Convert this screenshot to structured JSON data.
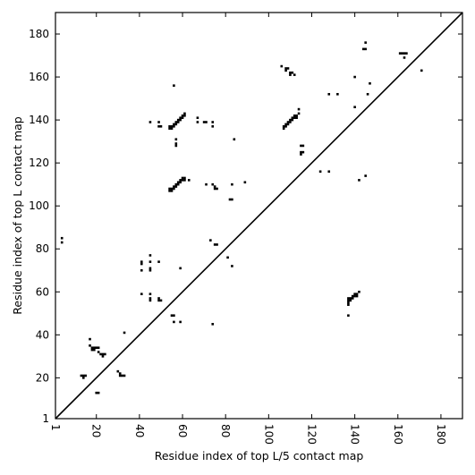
{
  "chart_data": {
    "type": "scatter",
    "title": "",
    "xlabel": "Residue index of top L/5 contact map",
    "ylabel": "Residue index of top L contact map",
    "xlim": [
      1,
      190
    ],
    "ylim": [
      1,
      190
    ],
    "xticks": [
      1,
      20,
      40,
      60,
      80,
      100,
      120,
      140,
      160,
      180
    ],
    "yticks": [
      1,
      20,
      40,
      60,
      80,
      100,
      120,
      140,
      160,
      180
    ],
    "grid": false,
    "legend": "none",
    "diagonal": true,
    "marker_color": "#000000",
    "points": [
      [
        4,
        85
      ],
      [
        4,
        83
      ],
      [
        13,
        21
      ],
      [
        14,
        20
      ],
      [
        15,
        21
      ],
      [
        14,
        21
      ],
      [
        17,
        38
      ],
      [
        17,
        35
      ],
      [
        18,
        34
      ],
      [
        18,
        33
      ],
      [
        19,
        34
      ],
      [
        20,
        34
      ],
      [
        19,
        33
      ],
      [
        21,
        34
      ],
      [
        21,
        32
      ],
      [
        22,
        31
      ],
      [
        23,
        30
      ],
      [
        23,
        31
      ],
      [
        24,
        31
      ],
      [
        20,
        13
      ],
      [
        21,
        13
      ],
      [
        30,
        23
      ],
      [
        31,
        22
      ],
      [
        31,
        21
      ],
      [
        32,
        21
      ],
      [
        33,
        21
      ],
      [
        33,
        41
      ],
      [
        41,
        74
      ],
      [
        41,
        73
      ],
      [
        41,
        70
      ],
      [
        41,
        59
      ],
      [
        45,
        77
      ],
      [
        45,
        74
      ],
      [
        45,
        71
      ],
      [
        45,
        70
      ],
      [
        45,
        59
      ],
      [
        45,
        57
      ],
      [
        45,
        56
      ],
      [
        49,
        74
      ],
      [
        49,
        57
      ],
      [
        49,
        56
      ],
      [
        50,
        56
      ],
      [
        45,
        139
      ],
      [
        49,
        139
      ],
      [
        49,
        137
      ],
      [
        50,
        137
      ],
      [
        54,
        137
      ],
      [
        54,
        136
      ],
      [
        55,
        137
      ],
      [
        55,
        136
      ],
      [
        56,
        138
      ],
      [
        56,
        137
      ],
      [
        57,
        139
      ],
      [
        57,
        138
      ],
      [
        58,
        140
      ],
      [
        58,
        139
      ],
      [
        59,
        141
      ],
      [
        59,
        140
      ],
      [
        60,
        142
      ],
      [
        60,
        141
      ],
      [
        61,
        142
      ],
      [
        61,
        143
      ],
      [
        57,
        131
      ],
      [
        57,
        129
      ],
      [
        57,
        128
      ],
      [
        54,
        108
      ],
      [
        54,
        107
      ],
      [
        55,
        108
      ],
      [
        55,
        107
      ],
      [
        56,
        109
      ],
      [
        56,
        108
      ],
      [
        57,
        110
      ],
      [
        57,
        109
      ],
      [
        58,
        111
      ],
      [
        58,
        110
      ],
      [
        59,
        112
      ],
      [
        59,
        111
      ],
      [
        60,
        113
      ],
      [
        60,
        112
      ],
      [
        61,
        113
      ],
      [
        61,
        112
      ],
      [
        63,
        112
      ],
      [
        55,
        49
      ],
      [
        56,
        49
      ],
      [
        56,
        46
      ],
      [
        59,
        46
      ],
      [
        59,
        71
      ],
      [
        56,
        156
      ],
      [
        67,
        141
      ],
      [
        67,
        139
      ],
      [
        70,
        139
      ],
      [
        71,
        139
      ],
      [
        74,
        139
      ],
      [
        74,
        137
      ],
      [
        71,
        110
      ],
      [
        73,
        84
      ],
      [
        74,
        110
      ],
      [
        75,
        109
      ],
      [
        75,
        108
      ],
      [
        76,
        108
      ],
      [
        75,
        82
      ],
      [
        76,
        82
      ],
      [
        74,
        45
      ],
      [
        81,
        76
      ],
      [
        82,
        103
      ],
      [
        83,
        103
      ],
      [
        83,
        110
      ],
      [
        83,
        72
      ],
      [
        84,
        131
      ],
      [
        89,
        111
      ],
      [
        106,
        165
      ],
      [
        108,
        164
      ],
      [
        108,
        163
      ],
      [
        109,
        164
      ],
      [
        110,
        162
      ],
      [
        110,
        161
      ],
      [
        111,
        162
      ],
      [
        112,
        161
      ],
      [
        107,
        137
      ],
      [
        107,
        136
      ],
      [
        108,
        138
      ],
      [
        108,
        137
      ],
      [
        109,
        139
      ],
      [
        109,
        138
      ],
      [
        110,
        140
      ],
      [
        110,
        139
      ],
      [
        111,
        141
      ],
      [
        111,
        140
      ],
      [
        112,
        142
      ],
      [
        112,
        141
      ],
      [
        113,
        142
      ],
      [
        113,
        141
      ],
      [
        114,
        143
      ],
      [
        114,
        145
      ],
      [
        115,
        128
      ],
      [
        115,
        125
      ],
      [
        115,
        124
      ],
      [
        116,
        125
      ],
      [
        116,
        128
      ],
      [
        124,
        116
      ],
      [
        128,
        116
      ],
      [
        128,
        152
      ],
      [
        132,
        152
      ],
      [
        137,
        57
      ],
      [
        137,
        56
      ],
      [
        137,
        55
      ],
      [
        137,
        54
      ],
      [
        137,
        49
      ],
      [
        138,
        57
      ],
      [
        138,
        56
      ],
      [
        139,
        58
      ],
      [
        139,
        57
      ],
      [
        140,
        59
      ],
      [
        140,
        58
      ],
      [
        141,
        59
      ],
      [
        141,
        58
      ],
      [
        142,
        60
      ],
      [
        140,
        160
      ],
      [
        140,
        146
      ],
      [
        142,
        112
      ],
      [
        144,
        173
      ],
      [
        145,
        173
      ],
      [
        145,
        176
      ],
      [
        145,
        114
      ],
      [
        146,
        152
      ],
      [
        147,
        157
      ],
      [
        161,
        171
      ],
      [
        162,
        171
      ],
      [
        163,
        171
      ],
      [
        164,
        171
      ],
      [
        163,
        169
      ],
      [
        171,
        163
      ]
    ]
  }
}
